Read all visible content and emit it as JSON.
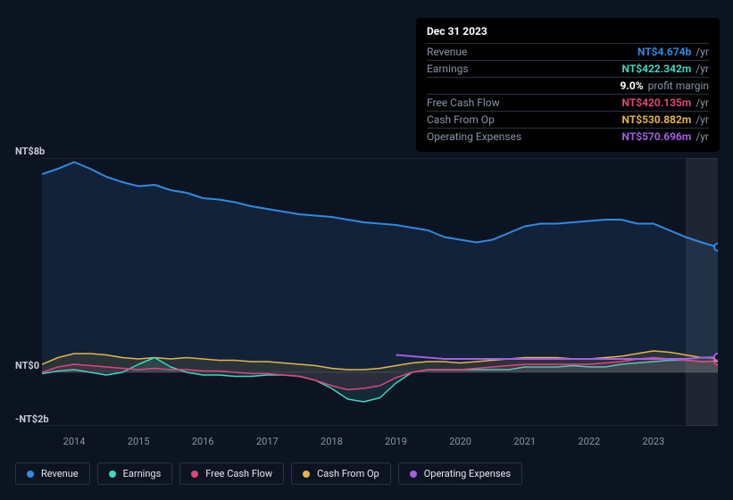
{
  "background_color": "#0d1421",
  "tooltip": {
    "date": "Dec 31 2023",
    "rows": [
      {
        "label": "Revenue",
        "value": "NT$4.674b",
        "unit": "/yr",
        "color": "#2e8ae6",
        "key": "revenue"
      },
      {
        "label": "Earnings",
        "value": "NT$422.342m",
        "unit": "/yr",
        "color": "#3fd6c0",
        "key": "earnings"
      },
      {
        "label": "",
        "value": "9.0%",
        "unit": "profit margin",
        "color": "#ffffff",
        "key": "margin"
      },
      {
        "label": "Free Cash Flow",
        "value": "NT$420.135m",
        "unit": "/yr",
        "color": "#e0457c",
        "key": "fcf"
      },
      {
        "label": "Cash From Op",
        "value": "NT$530.882m",
        "unit": "/yr",
        "color": "#e6b345",
        "key": "cfo"
      },
      {
        "label": "Operating Expenses",
        "value": "NT$570.696m",
        "unit": "/yr",
        "color": "#a45ee5",
        "key": "opex"
      }
    ]
  },
  "chart": {
    "type": "area",
    "y_labels": [
      {
        "text": "NT$8b",
        "y_value": 8
      },
      {
        "text": "NT$0",
        "y_value": 0
      },
      {
        "text": "-NT$2b",
        "y_value": -2
      }
    ],
    "x_labels": [
      "2014",
      "2015",
      "2016",
      "2017",
      "2018",
      "2019",
      "2020",
      "2021",
      "2022",
      "2023"
    ],
    "x_range": [
      2013.5,
      2024.0
    ],
    "y_range": [
      -2,
      8
    ],
    "x_highlight_from": 2023.5,
    "gridline_color": "#2a3340",
    "highlight_color": "rgba(255,255,255,0.08)",
    "marker": {
      "x": 2024.0,
      "y_values": {
        "revenue": 4.674,
        "earnings": 0.422,
        "fcf": 0.42,
        "cfo": 0.531,
        "opex": 0.571
      }
    },
    "series": [
      {
        "key": "revenue",
        "label": "Revenue",
        "color": "#2e8ae6",
        "fill_opacity": 0.12,
        "line_width": 2,
        "data": [
          [
            2013.5,
            7.4
          ],
          [
            2013.75,
            7.6
          ],
          [
            2014.0,
            7.85
          ],
          [
            2014.25,
            7.6
          ],
          [
            2014.5,
            7.3
          ],
          [
            2014.75,
            7.1
          ],
          [
            2015.0,
            6.95
          ],
          [
            2015.25,
            7.0
          ],
          [
            2015.5,
            6.8
          ],
          [
            2015.75,
            6.7
          ],
          [
            2016.0,
            6.5
          ],
          [
            2016.25,
            6.45
          ],
          [
            2016.5,
            6.35
          ],
          [
            2016.75,
            6.2
          ],
          [
            2017.0,
            6.1
          ],
          [
            2017.25,
            6.0
          ],
          [
            2017.5,
            5.9
          ],
          [
            2017.75,
            5.85
          ],
          [
            2018.0,
            5.8
          ],
          [
            2018.25,
            5.7
          ],
          [
            2018.5,
            5.6
          ],
          [
            2018.75,
            5.55
          ],
          [
            2019.0,
            5.5
          ],
          [
            2019.25,
            5.4
          ],
          [
            2019.5,
            5.3
          ],
          [
            2019.75,
            5.05
          ],
          [
            2020.0,
            4.95
          ],
          [
            2020.25,
            4.85
          ],
          [
            2020.5,
            4.95
          ],
          [
            2020.75,
            5.2
          ],
          [
            2021.0,
            5.45
          ],
          [
            2021.25,
            5.55
          ],
          [
            2021.5,
            5.55
          ],
          [
            2021.75,
            5.6
          ],
          [
            2022.0,
            5.65
          ],
          [
            2022.25,
            5.7
          ],
          [
            2022.5,
            5.7
          ],
          [
            2022.75,
            5.55
          ],
          [
            2023.0,
            5.55
          ],
          [
            2023.25,
            5.3
          ],
          [
            2023.5,
            5.05
          ],
          [
            2023.75,
            4.85
          ],
          [
            2024.0,
            4.674
          ]
        ]
      },
      {
        "key": "cfo",
        "label": "Cash From Op",
        "color": "#e6b345",
        "fill_opacity": 0.12,
        "line_width": 1.5,
        "data": [
          [
            2013.5,
            0.3
          ],
          [
            2013.75,
            0.55
          ],
          [
            2014.0,
            0.7
          ],
          [
            2014.25,
            0.7
          ],
          [
            2014.5,
            0.65
          ],
          [
            2014.75,
            0.55
          ],
          [
            2015.0,
            0.5
          ],
          [
            2015.25,
            0.55
          ],
          [
            2015.5,
            0.5
          ],
          [
            2015.75,
            0.55
          ],
          [
            2016.0,
            0.5
          ],
          [
            2016.25,
            0.45
          ],
          [
            2016.5,
            0.45
          ],
          [
            2016.75,
            0.4
          ],
          [
            2017.0,
            0.4
          ],
          [
            2017.25,
            0.35
          ],
          [
            2017.5,
            0.3
          ],
          [
            2017.75,
            0.25
          ],
          [
            2018.0,
            0.15
          ],
          [
            2018.25,
            0.1
          ],
          [
            2018.5,
            0.1
          ],
          [
            2018.75,
            0.15
          ],
          [
            2019.0,
            0.25
          ],
          [
            2019.25,
            0.35
          ],
          [
            2019.5,
            0.4
          ],
          [
            2019.75,
            0.4
          ],
          [
            2020.0,
            0.35
          ],
          [
            2020.25,
            0.4
          ],
          [
            2020.5,
            0.45
          ],
          [
            2020.75,
            0.5
          ],
          [
            2021.0,
            0.55
          ],
          [
            2021.25,
            0.55
          ],
          [
            2021.5,
            0.55
          ],
          [
            2021.75,
            0.5
          ],
          [
            2022.0,
            0.5
          ],
          [
            2022.25,
            0.55
          ],
          [
            2022.5,
            0.6
          ],
          [
            2022.75,
            0.7
          ],
          [
            2023.0,
            0.8
          ],
          [
            2023.25,
            0.75
          ],
          [
            2023.5,
            0.65
          ],
          [
            2023.75,
            0.55
          ],
          [
            2024.0,
            0.531
          ]
        ]
      },
      {
        "key": "earnings",
        "label": "Earnings",
        "color": "#3fd6c0",
        "fill_opacity": 0.12,
        "line_width": 1.5,
        "data": [
          [
            2013.5,
            -0.05
          ],
          [
            2013.75,
            0.05
          ],
          [
            2014.0,
            0.1
          ],
          [
            2014.25,
            0.0
          ],
          [
            2014.5,
            -0.1
          ],
          [
            2014.75,
            0.0
          ],
          [
            2015.0,
            0.3
          ],
          [
            2015.25,
            0.55
          ],
          [
            2015.5,
            0.2
          ],
          [
            2015.75,
            0.0
          ],
          [
            2016.0,
            -0.1
          ],
          [
            2016.25,
            -0.1
          ],
          [
            2016.5,
            -0.15
          ],
          [
            2016.75,
            -0.15
          ],
          [
            2017.0,
            -0.1
          ],
          [
            2017.25,
            -0.1
          ],
          [
            2017.5,
            -0.15
          ],
          [
            2017.75,
            -0.3
          ],
          [
            2018.0,
            -0.6
          ],
          [
            2018.25,
            -1.0
          ],
          [
            2018.5,
            -1.1
          ],
          [
            2018.75,
            -0.95
          ],
          [
            2019.0,
            -0.4
          ],
          [
            2019.25,
            0.0
          ],
          [
            2019.5,
            0.1
          ],
          [
            2019.75,
            0.1
          ],
          [
            2020.0,
            0.1
          ],
          [
            2020.25,
            0.1
          ],
          [
            2020.5,
            0.1
          ],
          [
            2020.75,
            0.1
          ],
          [
            2021.0,
            0.2
          ],
          [
            2021.25,
            0.2
          ],
          [
            2021.5,
            0.2
          ],
          [
            2021.75,
            0.25
          ],
          [
            2022.0,
            0.2
          ],
          [
            2022.25,
            0.2
          ],
          [
            2022.5,
            0.3
          ],
          [
            2022.75,
            0.35
          ],
          [
            2023.0,
            0.4
          ],
          [
            2023.25,
            0.45
          ],
          [
            2023.5,
            0.45
          ],
          [
            2023.75,
            0.4
          ],
          [
            2024.0,
            0.422
          ]
        ]
      },
      {
        "key": "fcf",
        "label": "Free Cash Flow",
        "color": "#e0457c",
        "fill_opacity": 0.12,
        "line_width": 1.5,
        "data": [
          [
            2013.5,
            0.0
          ],
          [
            2013.75,
            0.2
          ],
          [
            2014.0,
            0.3
          ],
          [
            2014.25,
            0.25
          ],
          [
            2014.5,
            0.2
          ],
          [
            2014.75,
            0.15
          ],
          [
            2015.0,
            0.1
          ],
          [
            2015.25,
            0.15
          ],
          [
            2015.5,
            0.1
          ],
          [
            2015.75,
            0.1
          ],
          [
            2016.0,
            0.05
          ],
          [
            2016.25,
            0.05
          ],
          [
            2016.5,
            0.0
          ],
          [
            2016.75,
            -0.05
          ],
          [
            2017.0,
            -0.05
          ],
          [
            2017.25,
            -0.1
          ],
          [
            2017.5,
            -0.15
          ],
          [
            2017.75,
            -0.3
          ],
          [
            2018.0,
            -0.5
          ],
          [
            2018.25,
            -0.65
          ],
          [
            2018.5,
            -0.6
          ],
          [
            2018.75,
            -0.5
          ],
          [
            2019.0,
            -0.2
          ],
          [
            2019.25,
            0.0
          ],
          [
            2019.5,
            0.1
          ],
          [
            2019.75,
            0.1
          ],
          [
            2020.0,
            0.1
          ],
          [
            2020.25,
            0.15
          ],
          [
            2020.5,
            0.2
          ],
          [
            2020.75,
            0.25
          ],
          [
            2021.0,
            0.3
          ],
          [
            2021.25,
            0.3
          ],
          [
            2021.5,
            0.3
          ],
          [
            2021.75,
            0.3
          ],
          [
            2022.0,
            0.3
          ],
          [
            2022.25,
            0.35
          ],
          [
            2022.5,
            0.4
          ],
          [
            2022.75,
            0.5
          ],
          [
            2023.0,
            0.55
          ],
          [
            2023.25,
            0.5
          ],
          [
            2023.5,
            0.45
          ],
          [
            2023.75,
            0.4
          ],
          [
            2024.0,
            0.42
          ]
        ]
      },
      {
        "key": "opex",
        "label": "Operating Expenses",
        "color": "#a45ee5",
        "fill_opacity": 0.0,
        "line_width": 2,
        "data": [
          [
            2019.0,
            0.65
          ],
          [
            2019.25,
            0.6
          ],
          [
            2019.5,
            0.55
          ],
          [
            2019.75,
            0.5
          ],
          [
            2020.0,
            0.5
          ],
          [
            2020.25,
            0.5
          ],
          [
            2020.5,
            0.5
          ],
          [
            2020.75,
            0.5
          ],
          [
            2021.0,
            0.5
          ],
          [
            2021.25,
            0.5
          ],
          [
            2021.5,
            0.5
          ],
          [
            2021.75,
            0.5
          ],
          [
            2022.0,
            0.5
          ],
          [
            2022.25,
            0.5
          ],
          [
            2022.5,
            0.5
          ],
          [
            2022.75,
            0.5
          ],
          [
            2023.0,
            0.5
          ],
          [
            2023.25,
            0.5
          ],
          [
            2023.5,
            0.5
          ],
          [
            2023.75,
            0.55
          ],
          [
            2024.0,
            0.571
          ]
        ]
      }
    ]
  },
  "legend": [
    {
      "key": "revenue",
      "label": "Revenue",
      "color": "#2e8ae6"
    },
    {
      "key": "earnings",
      "label": "Earnings",
      "color": "#3fd6c0"
    },
    {
      "key": "fcf",
      "label": "Free Cash Flow",
      "color": "#e0457c"
    },
    {
      "key": "cfo",
      "label": "Cash From Op",
      "color": "#e6b345"
    },
    {
      "key": "opex",
      "label": "Operating Expenses",
      "color": "#a45ee5"
    }
  ]
}
